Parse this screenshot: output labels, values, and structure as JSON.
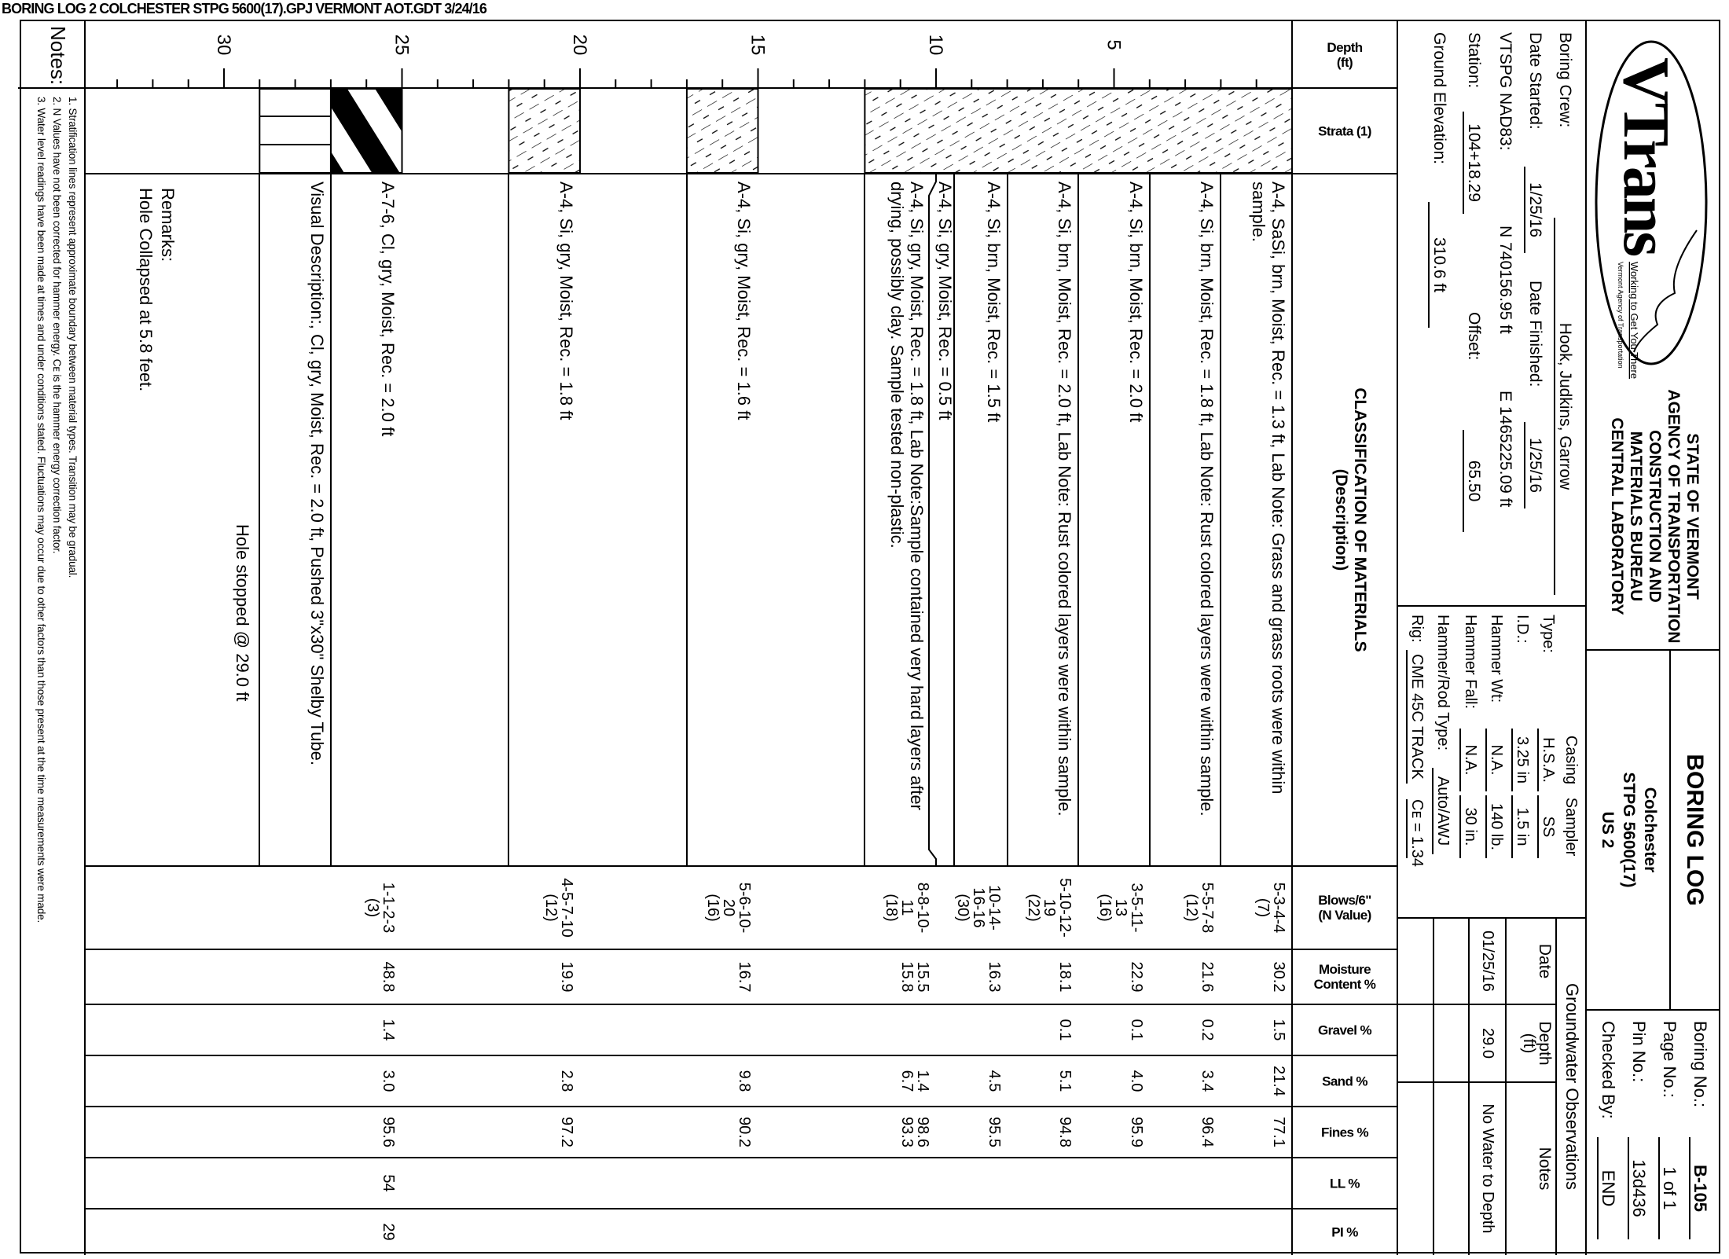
{
  "file_header": "BORING LOG  2 COLCHESTER STPG 5600(17).GPJ  VERMONT AOT.GDT  3/24/16",
  "logo": {
    "brand": "VTrans",
    "tagline": "Working to Get You There",
    "subtitle": "Vermont Agency of Transportation"
  },
  "agency": [
    "STATE OF VERMONT",
    "AGENCY OF TRANSPORTATION",
    "CONSTRUCTION AND",
    "MATERIALS BUREAU",
    "CENTRAL LABORATORY"
  ],
  "project": {
    "title": "BORING LOG",
    "lines": [
      "Colchester",
      "STPG 5600(17)",
      "US 2"
    ]
  },
  "boring_id": [
    {
      "label": "Boring No.:",
      "value": "B-105"
    },
    {
      "label": "Page No.:",
      "value": "1 of 1"
    },
    {
      "label": "Pin No.:",
      "value": "13d436"
    },
    {
      "label": "Checked By:",
      "value": "END"
    }
  ],
  "crew_info": {
    "boring_crew_label": "Boring Crew:",
    "boring_crew": "Hook, Judkins, Garrow",
    "date_started_label": "Date Started:",
    "date_started": "1/25/16",
    "date_finished_label": "Date Finished:",
    "date_finished": "1/25/16",
    "nad_label": "VTSPG NAD83:",
    "northing": "N 740156.95 ft",
    "easting": "E 1465225.09 ft",
    "station_label": "Station:",
    "station": "104+18.29",
    "offset_label": "Offset:",
    "offset": "65.50",
    "elevation_label": "Ground Elevation:",
    "elevation": "310.6 ft"
  },
  "equipment": {
    "casing_header": "Casing",
    "sampler_header": "Sampler",
    "rows": [
      {
        "label": "Type:",
        "casing": "H.S.A.",
        "sampler": "SS"
      },
      {
        "label": "I.D.:",
        "casing": "3.25 in",
        "sampler": "1.5 in"
      },
      {
        "label": "Hammer Wt:",
        "casing": "N.A.",
        "sampler": "140 lb."
      },
      {
        "label": "Hammer Fall:",
        "casing": "N.A.",
        "sampler": "30 in."
      }
    ],
    "rod_type_label": "Hammer/Rod Type:",
    "rod_type": "Auto/AWJ",
    "rig_label": "Rig:",
    "rig": "CME 45C TRACK",
    "ce": "Cᴇ = 1.34"
  },
  "groundwater": {
    "title": "Groundwater Observations",
    "headers": [
      "Date",
      "Depth\n(ft)",
      "Notes"
    ],
    "rows": [
      [
        "01/25/16",
        "29.0",
        "No Water to Depth"
      ],
      [
        "",
        "",
        ""
      ],
      [
        "",
        "",
        ""
      ]
    ]
  },
  "table_headers": {
    "depth": "Depth\n(ft)",
    "strata": "Strata (1)",
    "classification": "CLASSIFICATION OF MATERIALS\n(Description)",
    "blows": "Blows/6\"\n(N Value)",
    "moisture": "Moisture\nContent %",
    "gravel": "Gravel %",
    "sand": "Sand %",
    "fines": "Fines %",
    "ll": "LL %",
    "pi": "PI %"
  },
  "depth_axis": {
    "unit": "ft",
    "labels": [
      "5",
      "10",
      "15",
      "20",
      "25",
      "30"
    ],
    "max": 33
  },
  "strata": [
    {
      "top": 0,
      "bottom": 12,
      "type": "silt"
    },
    {
      "top": 15,
      "bottom": 17,
      "type": "silt"
    },
    {
      "top": 20,
      "bottom": 22,
      "type": "silt"
    },
    {
      "top": 25,
      "bottom": 27,
      "type": "clay"
    },
    {
      "top": 27,
      "bottom": 29,
      "type": "shelby-tube"
    }
  ],
  "descriptions": [
    {
      "depth": 0,
      "text": "A-4, SaSi, brn, Moist, Rec. = 1.3 ft, Lab Note: Grass and grass roots were within sample."
    },
    {
      "depth": 2,
      "text": "A-4, Si, brn, Moist, Rec. = 1.8 ft, Lab Note: Rust colored layers were within sample."
    },
    {
      "depth": 4,
      "text": "A-4, Si, brn, Moist, Rec. = 2.0 ft"
    },
    {
      "depth": 6,
      "text": "A-4, Si, brn, Moist, Rec. = 2.0 ft, Lab Note: Rust colored layers were within sample."
    },
    {
      "depth": 8,
      "text": "A-4, Si, brn, Moist, Rec. = 1.5 ft"
    },
    {
      "depth": 9.5,
      "text": "A-4, Si, gry, Moist, Rec. = 0.5 ft"
    },
    {
      "depth": 10,
      "text": "A-4, Si, gry, Moist, Rec. = 1.8 ft, Lab Note:Sample contained very hard layers after drying, possibly clay. Sample tested non-plastic."
    },
    {
      "depth": 15,
      "text": "A-4, Si, gry, Moist, Rec. = 1.6 ft"
    },
    {
      "depth": 20,
      "text": "A-4, Si, gry, Moist, Rec. = 1.8 ft"
    },
    {
      "depth": 25,
      "text": "A-7-6, Cl, gry, Moist, Rec. = 2.0 ft"
    },
    {
      "depth": 27,
      "text": "Visual Description:, Cl, gry, Moist, Rec. = 2.0 ft, Pushed 3\"x30\" Shelby Tube."
    }
  ],
  "row_boundaries": [
    2,
    4,
    6,
    8,
    9.5,
    10,
    12,
    17,
    22,
    27,
    29
  ],
  "samples": [
    {
      "depth": 0,
      "blows": [
        "5-3-4-4",
        "(7)"
      ],
      "moisture": [
        "30.2"
      ],
      "gravel": [
        "1.5"
      ],
      "sand": [
        "21.4"
      ],
      "fines": [
        "77.1"
      ],
      "ll": [],
      "pi": []
    },
    {
      "depth": 2,
      "blows": [
        "5-5-7-8",
        "(12)"
      ],
      "moisture": [
        "21.6"
      ],
      "gravel": [
        "0.2"
      ],
      "sand": [
        "3.4"
      ],
      "fines": [
        "96.4"
      ],
      "ll": [],
      "pi": []
    },
    {
      "depth": 4,
      "blows": [
        "3-5-11-",
        "13",
        "(16)"
      ],
      "moisture": [
        "22.9"
      ],
      "gravel": [
        "0.1"
      ],
      "sand": [
        "4.0"
      ],
      "fines": [
        "95.9"
      ],
      "ll": [],
      "pi": []
    },
    {
      "depth": 6,
      "blows": [
        "5-10-12-",
        "19",
        "(22)"
      ],
      "moisture": [
        "18.1"
      ],
      "gravel": [
        "0.1"
      ],
      "sand": [
        "5.1"
      ],
      "fines": [
        "94.8"
      ],
      "ll": [],
      "pi": []
    },
    {
      "depth": 8,
      "blows": [
        "10-14-",
        "16-16",
        "(30)"
      ],
      "moisture": [
        "16.3"
      ],
      "gravel": [],
      "sand": [
        "4.5"
      ],
      "fines": [
        "95.5"
      ],
      "ll": [],
      "pi": []
    },
    {
      "depth": 10,
      "blows": [
        "8-8-10-",
        "11",
        "(18)"
      ],
      "moisture": [
        "15.5",
        "15.8"
      ],
      "gravel": [],
      "sand": [
        "1.4",
        "6.7"
      ],
      "fines": [
        "98.6",
        "93.3"
      ],
      "ll": [],
      "pi": []
    },
    {
      "depth": 15,
      "blows": [
        "5-6-10-",
        "20",
        "(16)"
      ],
      "moisture": [
        "16.7"
      ],
      "gravel": [],
      "sand": [
        "9.8"
      ],
      "fines": [
        "90.2"
      ],
      "ll": [],
      "pi": []
    },
    {
      "depth": 20,
      "blows": [
        "4-5-7-10",
        "(12)"
      ],
      "moisture": [
        "19.9"
      ],
      "gravel": [],
      "sand": [
        "2.8"
      ],
      "fines": [
        "97.2"
      ],
      "ll": [],
      "pi": []
    },
    {
      "depth": 25,
      "blows": [
        "1-1-2-3",
        "(3)"
      ],
      "moisture": [
        "48.8"
      ],
      "gravel": [
        "1.4"
      ],
      "sand": [
        "3.0"
      ],
      "fines": [
        "95.6"
      ],
      "ll": [
        "54"
      ],
      "pi": [
        "29"
      ]
    }
  ],
  "hole_stopped": "Hole stopped @ 29.0 ft",
  "remarks": {
    "label": "Remarks:",
    "text": "Hole Collapsed at 5.8 feet."
  },
  "notes": {
    "label": "Notes:",
    "lines": [
      "1. Stratification lines represent approximate boundary between material types. Transition may be gradual.",
      "2. N Values have not been corrected for hammer energy. Cᴇ is the hammer energy correction factor.",
      "3. Water level readings have been made at times and under conditions stated. Fluctuations may occur due to other factors than those present at the time measurements were made."
    ]
  }
}
